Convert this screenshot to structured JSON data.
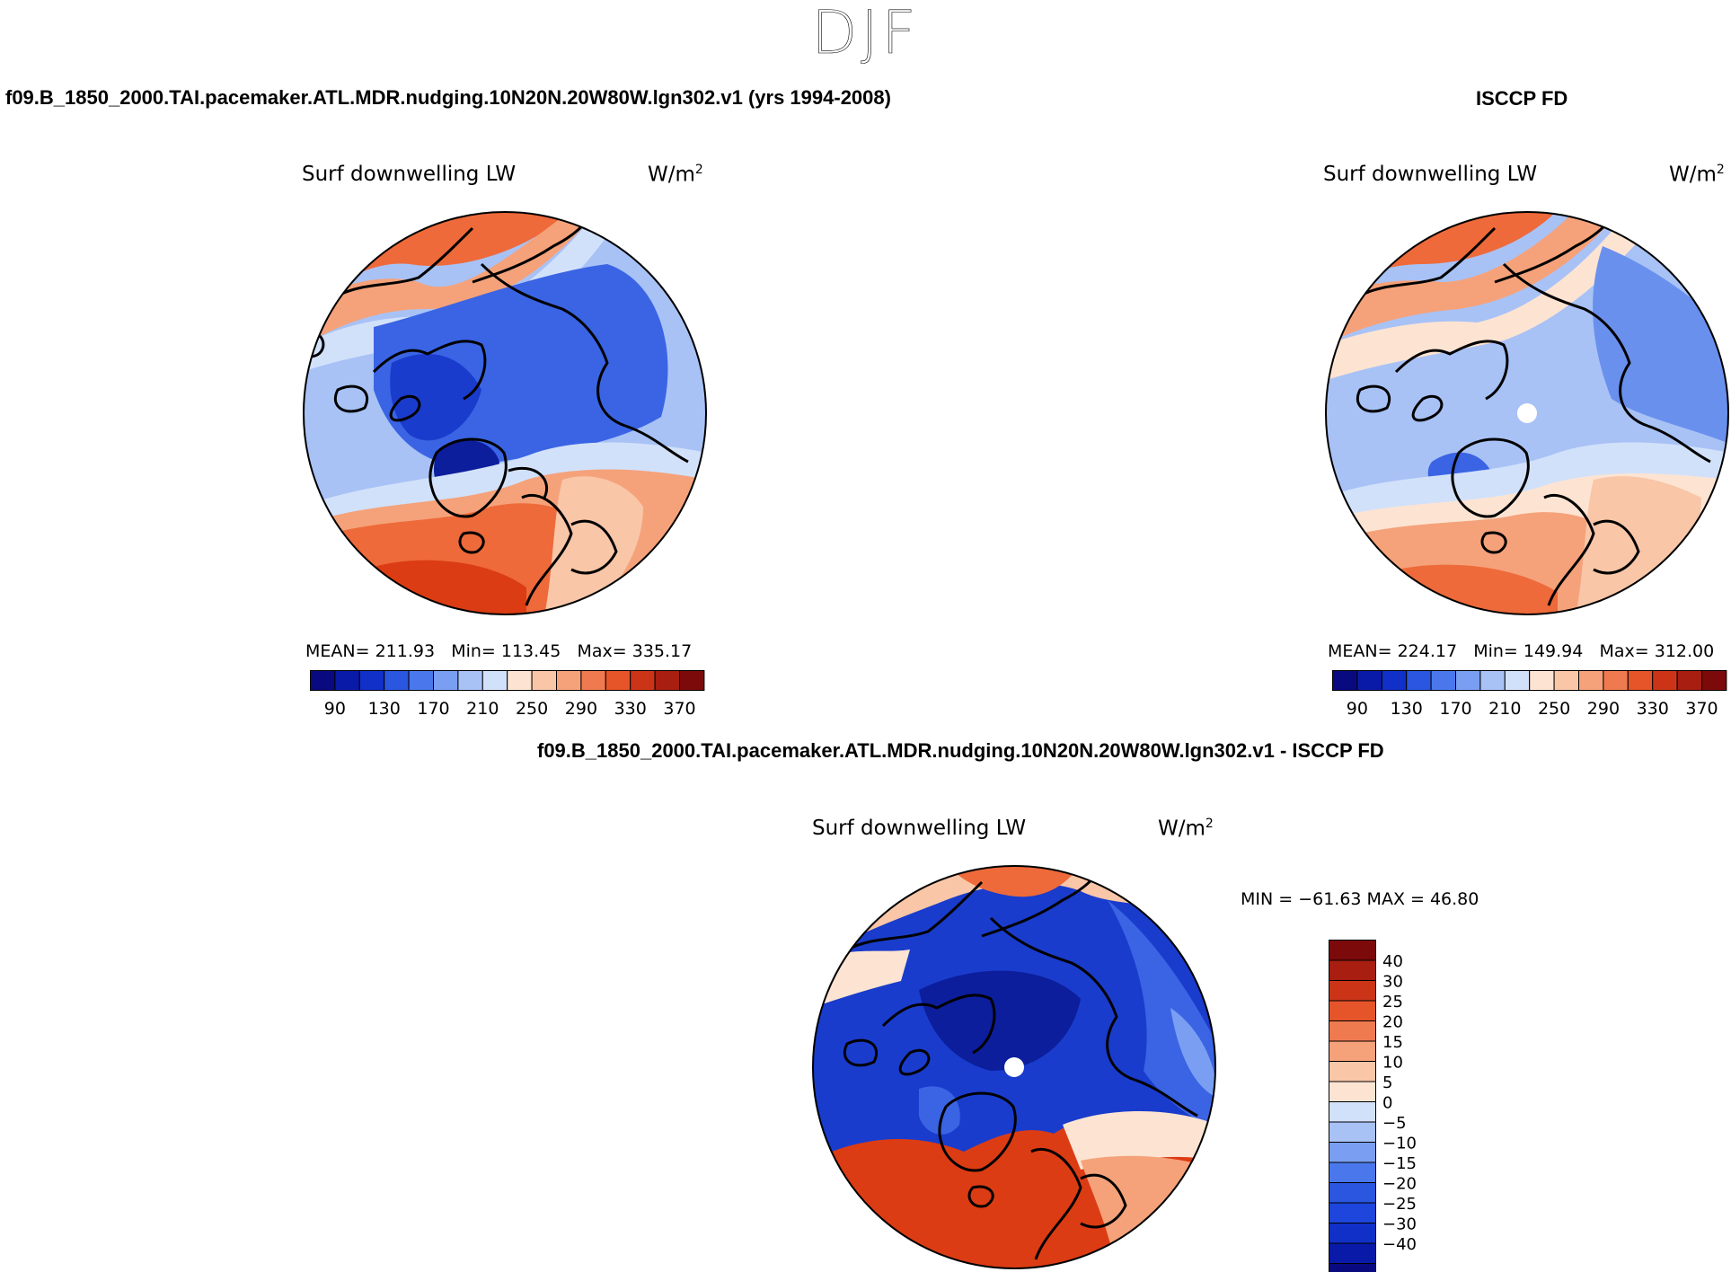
{
  "title": "DJF",
  "top_left": {
    "case_title": "f09.B_1850_2000.TAI.pacemaker.ATL.MDR.nudging.10N20N.20W80W.lgn302.v1 (yrs 1994-2008)",
    "variable": "Surf downwelling LW",
    "units_base": "W/m",
    "units_exp": "2",
    "stats": {
      "mean_label": "MEAN=",
      "mean": "211.93",
      "min_label": "Min=",
      "min": "113.45",
      "max_label": "Max=",
      "max": "335.17"
    }
  },
  "top_right": {
    "case_title": "ISCCP FD",
    "variable": "Surf downwelling LW",
    "units_base": "W/m",
    "units_exp": "2",
    "stats": {
      "mean_label": "MEAN=",
      "mean": "224.17",
      "min_label": "Min=",
      "min": "149.94",
      "max_label": "Max=",
      "max": "312.00"
    }
  },
  "bottom": {
    "case_title": "f09.B_1850_2000.TAI.pacemaker.ATL.MDR.nudging.10N20N.20W80W.lgn302.v1 - ISCCP FD",
    "variable": "Surf downwelling LW",
    "units_base": "W/m",
    "units_exp": "2",
    "minmax": "MIN = −61.63 MAX =   46.80"
  },
  "colorbar_main": {
    "colors": [
      "#0a0a80",
      "#0a1aa8",
      "#1030c8",
      "#2a56e0",
      "#4a78ec",
      "#7a9ff2",
      "#a8c2f6",
      "#d2e1fa",
      "#fde4d2",
      "#f9c6a8",
      "#f5a27a",
      "#f07a50",
      "#e6542a",
      "#cc3418",
      "#a81e10",
      "#7c0a0a"
    ],
    "labels": [
      "90",
      "130",
      "170",
      "210",
      "250",
      "290",
      "330",
      "370"
    ]
  },
  "colorbar_diff": {
    "colors": [
      "#0a0a80",
      "#0a1aa8",
      "#1030c8",
      "#1e46dc",
      "#2a56e0",
      "#4a78ec",
      "#7a9ff2",
      "#a8c2f6",
      "#d2e1fa",
      "#fde4d2",
      "#f9c6a8",
      "#f5a27a",
      "#f07a50",
      "#e6542a",
      "#cc3418",
      "#a81e10",
      "#7c0a0a"
    ],
    "labels": [
      "40",
      "30",
      "25",
      "20",
      "15",
      "10",
      "5",
      "0",
      "−5",
      "−10",
      "−15",
      "−20",
      "−25",
      "−30",
      "−40"
    ]
  },
  "map_colors": {
    "deep_blue": "#1a3ccc",
    "blue": "#3a64e4",
    "mid_blue": "#6a90ee",
    "light_blue": "#a8c2f6",
    "pale_blue": "#d2e1fa",
    "pale_orange": "#fde4d2",
    "peach": "#f5a27a",
    "orange": "#ee6a3a",
    "red_orange": "#dc3c14",
    "dark_navy": "#0c1e9c"
  }
}
